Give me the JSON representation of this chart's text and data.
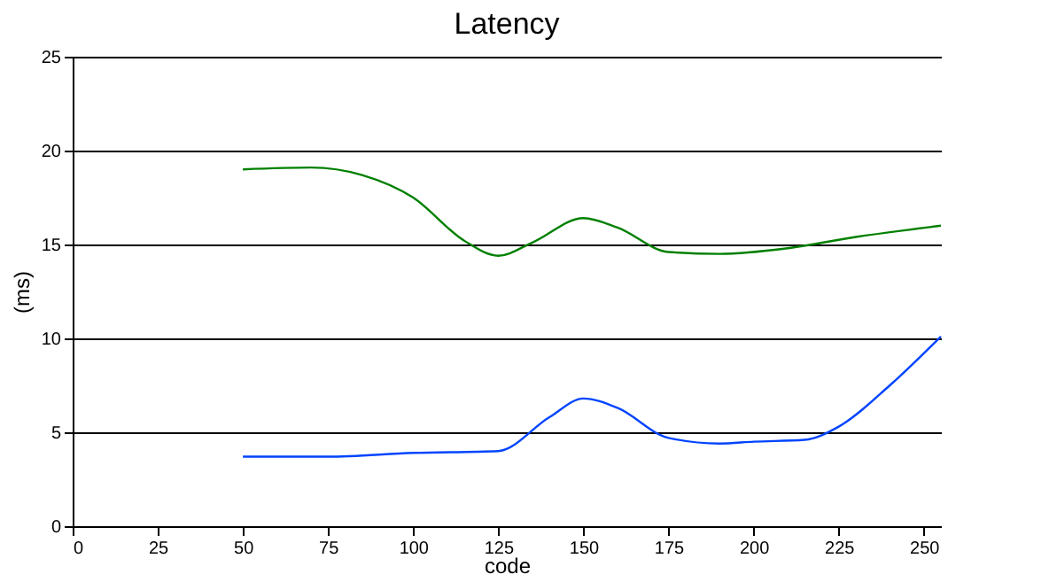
{
  "chart_data": {
    "type": "line",
    "title": "Latency",
    "xlabel": "code",
    "ylabel": "(ms)",
    "xlim": [
      0,
      255
    ],
    "xticks": [
      0,
      25,
      50,
      75,
      100,
      125,
      150,
      175,
      200,
      225,
      250
    ],
    "ylim": [
      0,
      25
    ],
    "yticks": [
      0,
      5,
      10,
      15,
      20,
      25
    ],
    "grid": "y",
    "series": [
      {
        "color": "#0044ff",
        "x": [
          50,
          75,
          100,
          125,
          140,
          150,
          160,
          175,
          190,
          200,
          215,
          225,
          240,
          255
        ],
        "values": [
          3.7,
          3.7,
          3.9,
          4.0,
          5.8,
          6.8,
          6.3,
          4.7,
          4.4,
          4.5,
          4.6,
          5.3,
          7.5,
          10.1
        ]
      },
      {
        "color": "#008000",
        "x": [
          50,
          70,
          85,
          100,
          115,
          125,
          135,
          150,
          160,
          175,
          190,
          210,
          230,
          255
        ],
        "values": [
          19.0,
          19.1,
          18.7,
          17.5,
          15.2,
          14.4,
          15.1,
          16.4,
          15.9,
          14.6,
          14.5,
          14.8,
          15.4,
          16.0
        ]
      }
    ]
  }
}
